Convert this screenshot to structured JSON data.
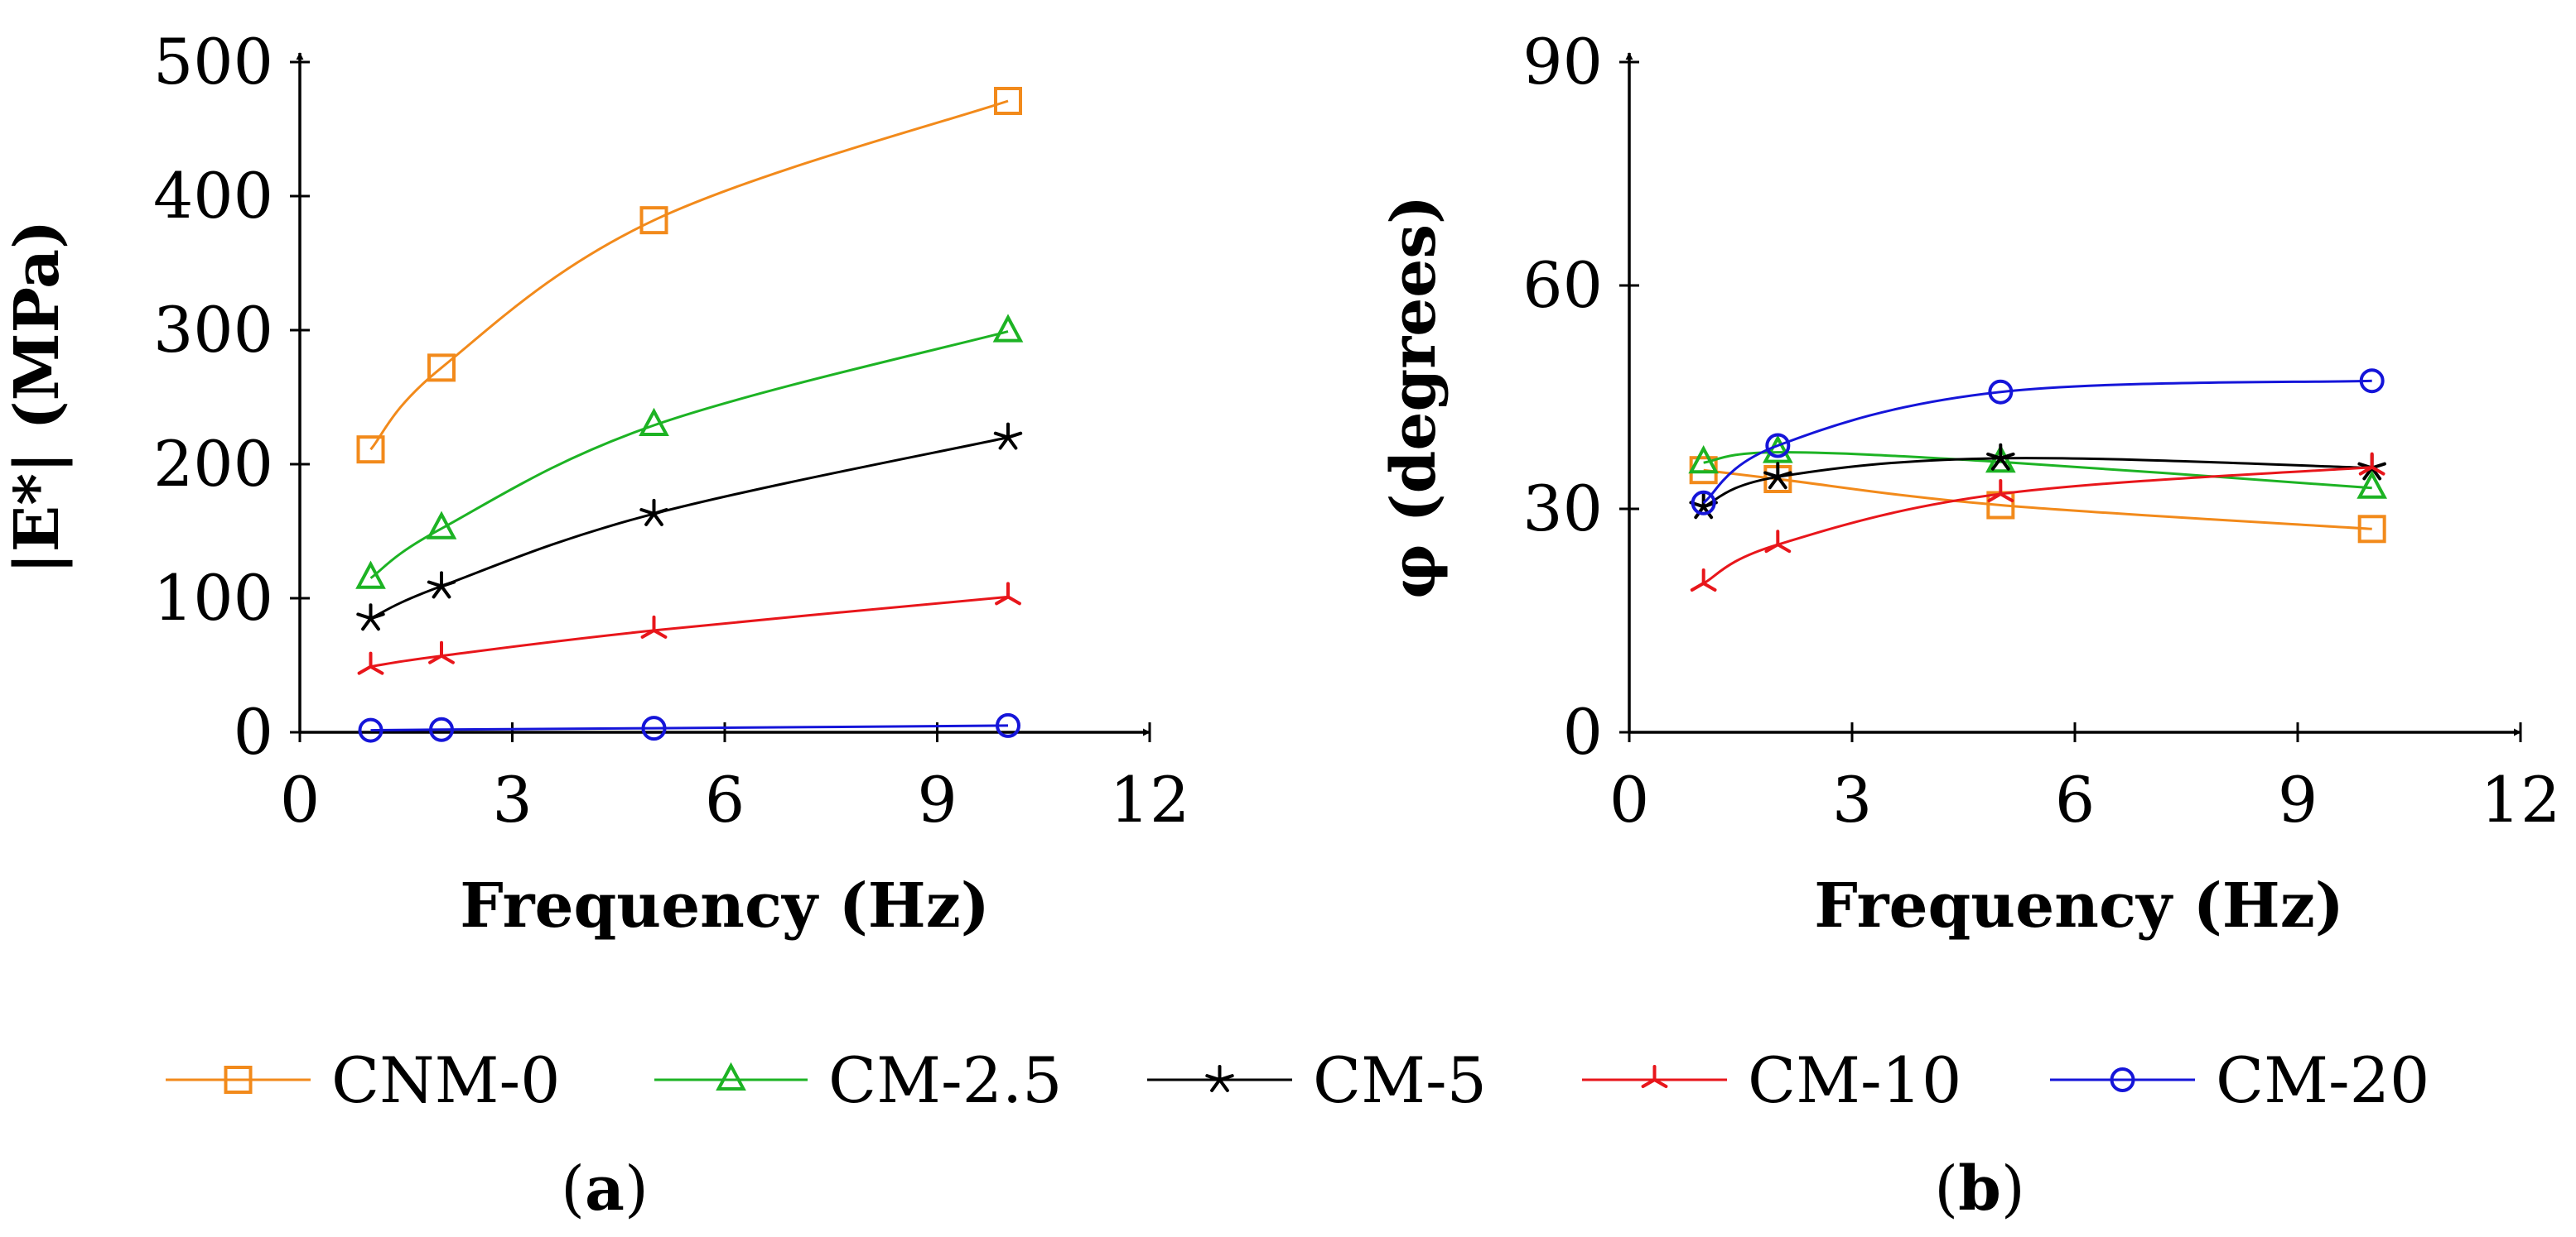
{
  "chart_data": [
    {
      "type": "line",
      "panel_label": "a",
      "xlabel": "Frequency (Hz)",
      "ylabel": "|E*| (MPa)",
      "xlim": [
        0,
        12
      ],
      "ylim": [
        0,
        500
      ],
      "xticks": [
        0,
        3,
        6,
        9,
        12
      ],
      "yticks": [
        0,
        100,
        200,
        300,
        400,
        500
      ],
      "x": [
        1,
        2,
        5,
        10
      ],
      "series": [
        {
          "name": "CNM-0",
          "values": [
            211,
            272,
            382,
            471
          ]
        },
        {
          "name": "CM-2.5",
          "values": [
            115,
            152,
            229,
            299
          ]
        },
        {
          "name": "CM-5",
          "values": [
            85,
            109,
            163,
            220
          ]
        },
        {
          "name": "CM-10",
          "values": [
            49,
            57,
            76,
            101
          ]
        },
        {
          "name": "CM-20",
          "values": [
            1.5,
            2,
            3,
            5
          ]
        }
      ]
    },
    {
      "type": "line",
      "panel_label": "b",
      "xlabel": "Frequency (Hz)",
      "ylabel": "φ (degrees)",
      "xlim": [
        0,
        12
      ],
      "ylim": [
        0,
        90
      ],
      "xticks": [
        0,
        3,
        6,
        9,
        12
      ],
      "yticks": [
        0,
        30,
        60,
        90
      ],
      "x": [
        1,
        2,
        5,
        10
      ],
      "series": [
        {
          "name": "CNM-0",
          "values": [
            35.2,
            34.0,
            30.5,
            27.3
          ]
        },
        {
          "name": "CM-2.5",
          "values": [
            36.2,
            37.6,
            36.3,
            32.8
          ]
        },
        {
          "name": "CM-5",
          "values": [
            30.3,
            34.3,
            36.8,
            35.5
          ]
        },
        {
          "name": "CM-10",
          "values": [
            20.0,
            25.2,
            32.0,
            35.6
          ]
        },
        {
          "name": "CM-20",
          "values": [
            30.8,
            38.5,
            45.7,
            47.2
          ]
        }
      ]
    }
  ],
  "legend": [
    {
      "name": "CNM-0",
      "color": "#F28A1B",
      "marker": "square"
    },
    {
      "name": "CM-2.5",
      "color": "#1DB324",
      "marker": "triangle"
    },
    {
      "name": "CM-5",
      "color": "#000000",
      "marker": "star"
    },
    {
      "name": "CM-10",
      "color": "#E8161B",
      "marker": "tri-down"
    },
    {
      "name": "CM-20",
      "color": "#1515D9",
      "marker": "circle"
    }
  ],
  "captions": [
    {
      "open": "(",
      "letter": "a",
      "close": ")"
    },
    {
      "open": "(",
      "letter": "b",
      "close": ")"
    }
  ]
}
